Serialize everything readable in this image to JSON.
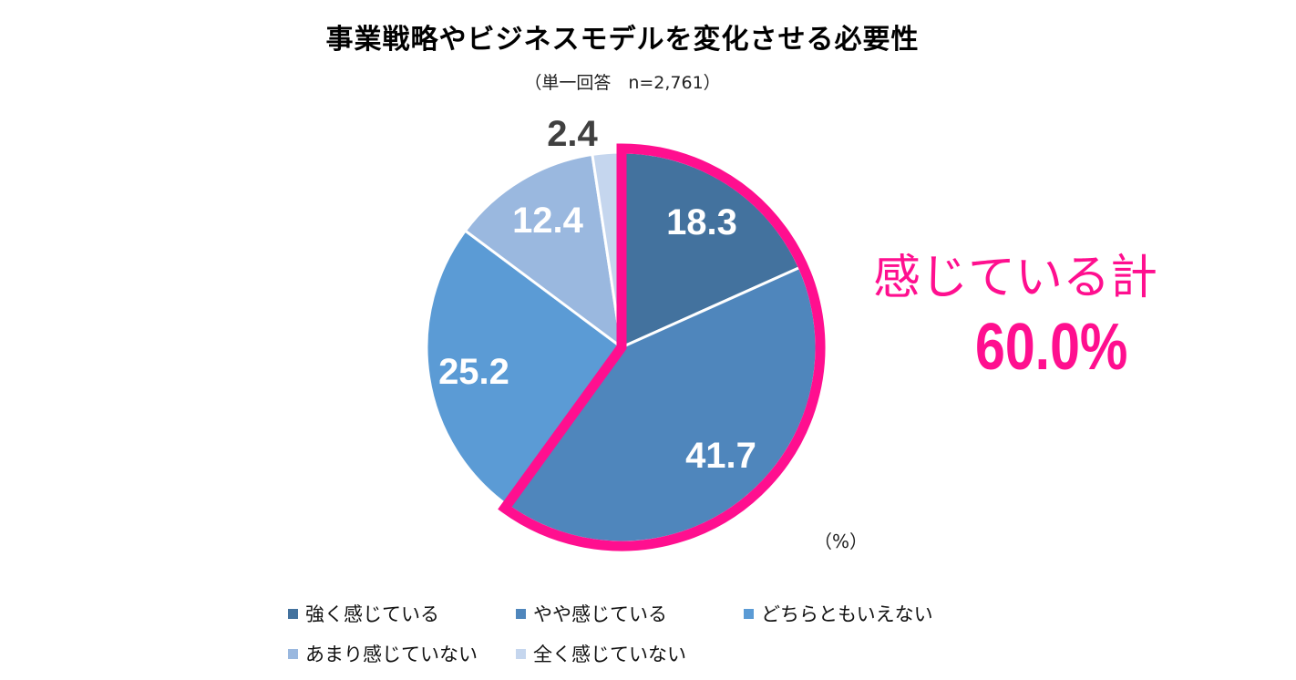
{
  "title": "事業戦略やビジネスモデルを変化させる必要性",
  "subtitle": "（単一回答　n=2,761）",
  "unit_label": "（%）",
  "highlight": {
    "caption": "感じている計",
    "value": "60.0%",
    "color": "#ff0f8f"
  },
  "chart_data": {
    "type": "pie",
    "start": "12 o'clock, clockwise",
    "series": [
      {
        "name": "強く感じている",
        "value": 18.3,
        "label": "18.3",
        "color": "#43729e",
        "label_color": "#ffffff"
      },
      {
        "name": "やや感じている",
        "value": 41.7,
        "label": "41.7",
        "color": "#4f86bc",
        "label_color": "#ffffff"
      },
      {
        "name": "どちらともいえない",
        "value": 25.2,
        "label": "25.2",
        "color": "#5b9bd5",
        "label_color": "#ffffff"
      },
      {
        "name": "あまり感じていない",
        "value": 12.4,
        "label": "12.4",
        "color": "#9ab8df",
        "label_color": "#ffffff"
      },
      {
        "name": "全く感じていない",
        "value": 2.4,
        "label": "2.4",
        "color": "#c5d6ee",
        "label_color": "#404040"
      }
    ],
    "highlighted_slices": [
      "強く感じている",
      "やや感じている"
    ],
    "legend_position": "bottom"
  }
}
